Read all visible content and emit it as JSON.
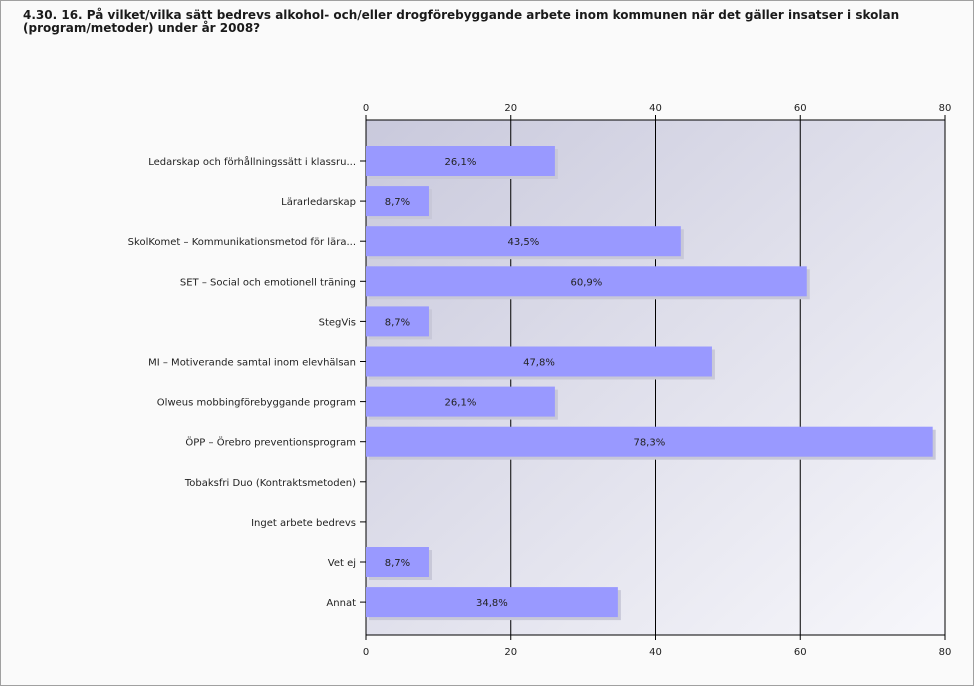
{
  "title": "4.30. 16. På vilket/vilka sätt bedrevs alkohol- och/eller drogförebyggande arbete inom kommunen när det gäller insatser i skolan (program/metoder) under år 2008?",
  "colors": {
    "bar": "#9999ff",
    "bar_shadow": "#c8c8d8",
    "plot_bg_top": "#c9c9dc",
    "plot_bg_bottom": "#f7f7fb",
    "grid": "#000000",
    "frame_bg": "#fafafa"
  },
  "chart_data": {
    "type": "bar",
    "orientation": "horizontal",
    "title": "4.30. 16. På vilket/vilka sätt bedrevs alkohol- och/eller drogförebyggande arbete inom kommunen när det gäller insatser i skolan (program/metoder) under år 2008?",
    "categories": [
      "Ledarskap och förhållningssätt i klassru...",
      "Lärarledarskap",
      "SkolKomet – Kommunikationsmetod för lära...",
      "SET – Social och emotionell träning",
      "StegVis",
      "MI – Motiverande samtal inom elevhälsan",
      "Olweus mobbingförebyggande program",
      "ÖPP – Örebro preventionsprogram",
      "Tobaksfri Duo (Kontraktsmetoden)",
      "Inget arbete bedrevs",
      "Vet ej",
      "Annat"
    ],
    "values": [
      26.1,
      8.7,
      43.5,
      60.9,
      8.7,
      47.8,
      26.1,
      78.3,
      0,
      0,
      8.7,
      34.8
    ],
    "value_labels": [
      "26,1%",
      "8,7%",
      "43,5%",
      "60,9%",
      "8,7%",
      "47,8%",
      "26,1%",
      "78,3%",
      "",
      "",
      "8,7%",
      "34,8%"
    ],
    "xlim": [
      0,
      80
    ],
    "xticks": [
      0,
      20,
      40,
      60,
      80
    ],
    "xtick_labels": [
      "0",
      "20",
      "40",
      "60",
      "80"
    ],
    "axis_top_and_bottom": true,
    "grid": true,
    "xlabel": "",
    "ylabel": ""
  }
}
